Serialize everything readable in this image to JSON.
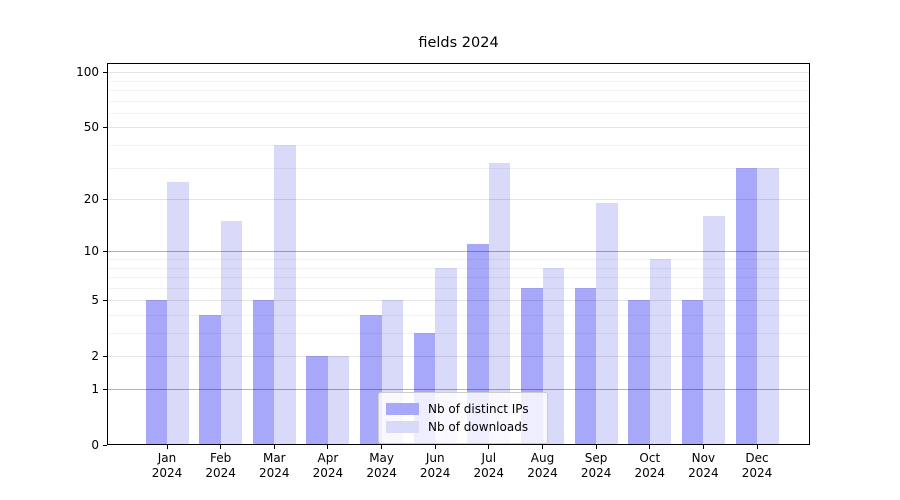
{
  "title": "fields 2024",
  "chart_data": {
    "type": "bar",
    "title": "fields 2024",
    "y_scale": "log10(1+v)",
    "ylim": [
      0,
      112
    ],
    "grid": true,
    "legend_position": "bottom-center",
    "year": "2024",
    "months": [
      "Jan",
      "Feb",
      "Mar",
      "Apr",
      "May",
      "Jun",
      "Jul",
      "Aug",
      "Sep",
      "Oct",
      "Nov",
      "Dec"
    ],
    "categories": [
      "Jan 2024",
      "Feb 2024",
      "Mar 2024",
      "Apr 2024",
      "May 2024",
      "Jun 2024",
      "Jul 2024",
      "Aug 2024",
      "Sep 2024",
      "Oct 2024",
      "Nov 2024",
      "Dec 2024"
    ],
    "y_ticks": [
      0,
      1,
      2,
      5,
      10,
      20,
      50,
      100
    ],
    "series": [
      {
        "name": "Nb of distinct IPs",
        "color": "#a8a8fa",
        "values": [
          5,
          4,
          5,
          2,
          4,
          3,
          11,
          6,
          6,
          5,
          5,
          30
        ]
      },
      {
        "name": "Nb of downloads",
        "color": "#d9d9fa",
        "values": [
          25,
          15,
          40,
          2,
          5,
          8,
          32,
          8,
          19,
          9,
          16,
          30
        ]
      }
    ]
  },
  "colors": {
    "bar_distinct_ips": "#a8a8fa",
    "bar_downloads": "#d9d9fa",
    "major_gridline": "rgba(0,0,0,0.30)",
    "mid_gridline": "rgba(0,0,0,0.10)",
    "minor_gridline": "rgba(0,0,0,0.05)",
    "axis": "#000000",
    "legend_border": "#cccccc"
  }
}
